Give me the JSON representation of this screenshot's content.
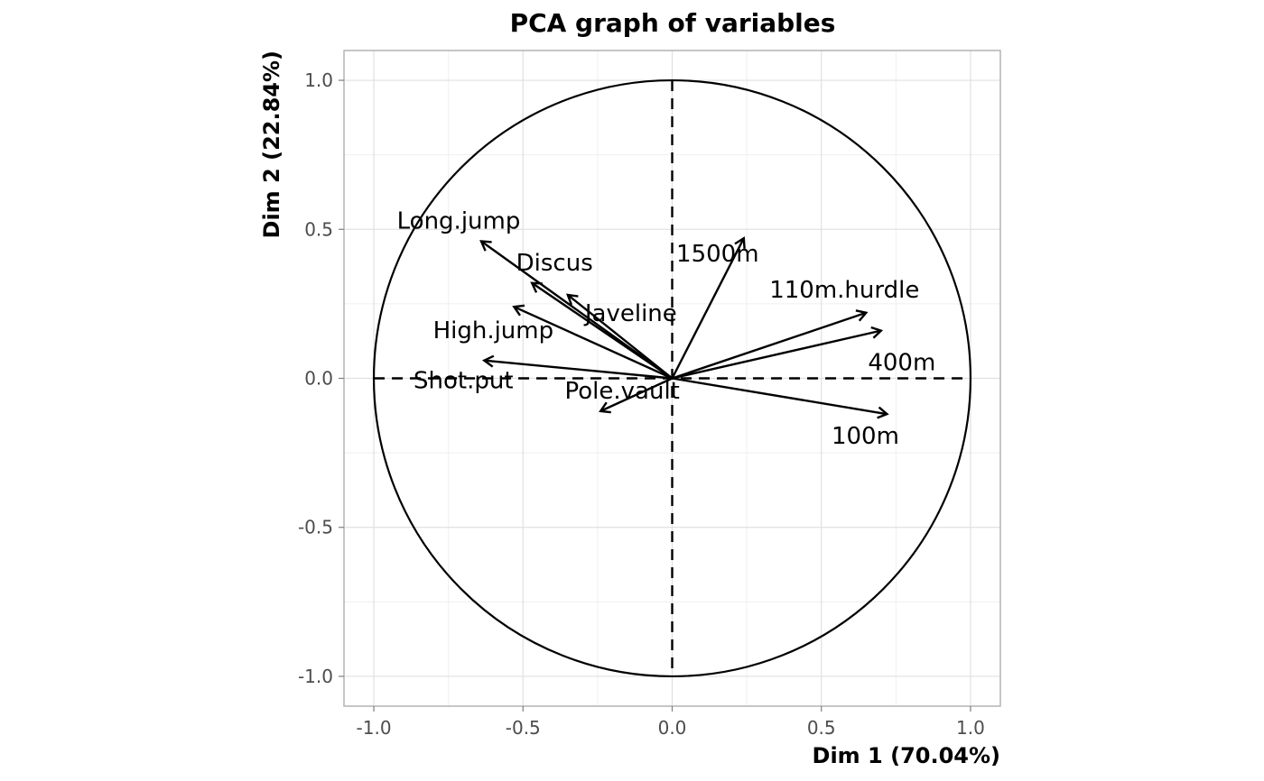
{
  "chart_data": {
    "type": "scatter",
    "title": "PCA graph of variables",
    "xlabel": "Dim 1 (70.04%)",
    "ylabel": "Dim 2 (22.84%)",
    "xlim": [
      -1.1,
      1.1
    ],
    "ylim": [
      -1.1,
      1.1
    ],
    "x_ticks": [
      -1.0,
      -0.5,
      0.0,
      0.5,
      1.0
    ],
    "y_ticks": [
      -1.0,
      -0.5,
      0.0,
      0.5,
      1.0
    ],
    "x_tick_labels": [
      "-1.0",
      "-0.5",
      "0.0",
      "0.5",
      "1.0"
    ],
    "y_tick_labels": [
      "-1.0",
      "-0.5",
      "0.0",
      "0.5",
      "1.0"
    ],
    "grid": true,
    "correlation_circle_radius": 1.0,
    "variables": [
      {
        "name": "Long.jump",
        "x": -0.64,
        "y": 0.46
      },
      {
        "name": "Discus",
        "x": -0.47,
        "y": 0.32
      },
      {
        "name": "1500m",
        "x": 0.24,
        "y": 0.47
      },
      {
        "name": "110m.hurdle",
        "x": 0.65,
        "y": 0.22
      },
      {
        "name": "Javeline",
        "x": -0.35,
        "y": 0.28
      },
      {
        "name": "High.jump",
        "x": -0.53,
        "y": 0.24
      },
      {
        "name": "400m",
        "x": 0.7,
        "y": 0.16
      },
      {
        "name": "Shot.put",
        "x": -0.63,
        "y": 0.06
      },
      {
        "name": "Pole.vault",
        "x": -0.24,
        "y": -0.11
      },
      {
        "name": "100m",
        "x": 0.72,
        "y": -0.12
      }
    ]
  }
}
